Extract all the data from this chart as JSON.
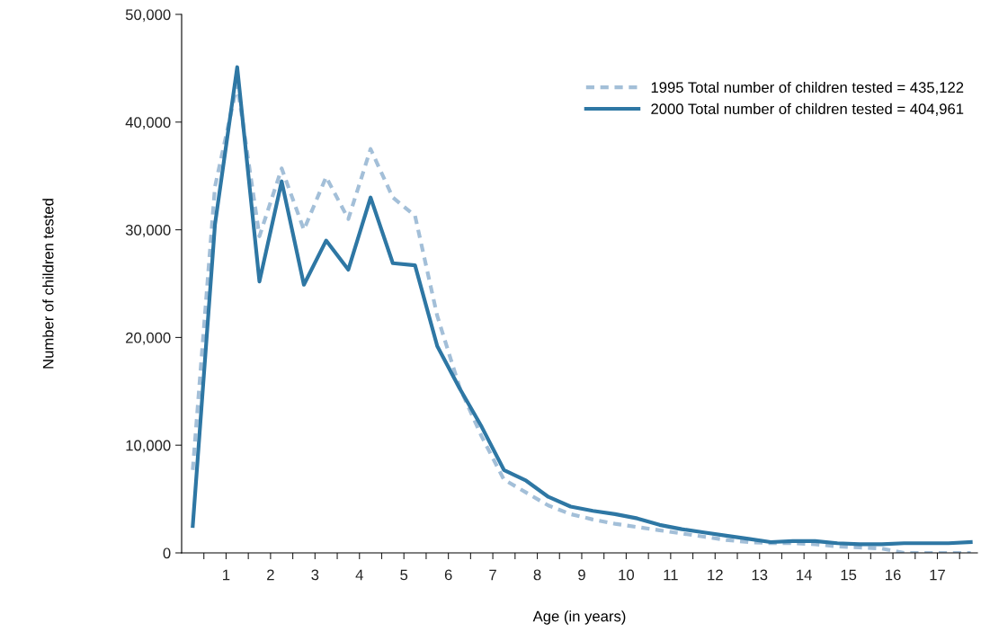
{
  "chart_data": {
    "type": "line",
    "xlabel": "Age (in years)",
    "ylabel": "Number of children tested",
    "x": [
      0.25,
      0.75,
      1.25,
      1.75,
      2.25,
      2.75,
      3.25,
      3.75,
      4.25,
      4.75,
      5.25,
      5.75,
      6.25,
      6.75,
      7.25,
      7.75,
      8.25,
      8.75,
      9.25,
      9.75,
      10.25,
      10.75,
      11.25,
      11.75,
      12.25,
      12.75,
      13.25,
      13.75,
      14.25,
      14.75,
      15.25,
      15.75,
      16.25,
      16.75,
      17.25,
      17.75
    ],
    "series": [
      {
        "name": "1995 Total number of children tested = 435,122",
        "color": "#a3bfd8",
        "line_style": "dashed",
        "values": [
          7700,
          34000,
          43500,
          29400,
          35700,
          30000,
          34900,
          31000,
          37500,
          33000,
          31300,
          22000,
          15400,
          10800,
          6800,
          5600,
          4400,
          3600,
          3100,
          2700,
          2400,
          2100,
          1800,
          1500,
          1200,
          1000,
          900,
          900,
          800,
          600,
          500,
          400,
          0,
          0,
          0,
          0
        ]
      },
      {
        "name": "2000 Total number of children tested = 404,961",
        "color": "#2e77a4",
        "line_style": "solid",
        "values": [
          2500,
          30500,
          45100,
          25200,
          34500,
          24900,
          29000,
          26300,
          33000,
          26900,
          26700,
          19200,
          15300,
          11700,
          7700,
          6700,
          5200,
          4300,
          3900,
          3600,
          3200,
          2600,
          2200,
          1900,
          1600,
          1300,
          1000,
          1100,
          1100,
          900,
          800,
          800,
          900,
          900,
          900,
          1000
        ]
      }
    ],
    "xlim": [
      0,
      17.9
    ],
    "xticks": [
      {
        "value": 0.5,
        "label": null
      },
      {
        "value": 1,
        "label": "1"
      },
      {
        "value": 1.5,
        "label": null
      },
      {
        "value": 2,
        "label": "2"
      },
      {
        "value": 2.5,
        "label": null
      },
      {
        "value": 3,
        "label": "3"
      },
      {
        "value": 3.5,
        "label": null
      },
      {
        "value": 4,
        "label": "4"
      },
      {
        "value": 4.5,
        "label": null
      },
      {
        "value": 5,
        "label": "5"
      },
      {
        "value": 5.5,
        "label": null
      },
      {
        "value": 6,
        "label": "6"
      },
      {
        "value": 6.5,
        "label": null
      },
      {
        "value": 7,
        "label": "7"
      },
      {
        "value": 7.5,
        "label": null
      },
      {
        "value": 8,
        "label": "8"
      },
      {
        "value": 8.5,
        "label": null
      },
      {
        "value": 9,
        "label": "9"
      },
      {
        "value": 9.5,
        "label": null
      },
      {
        "value": 10,
        "label": "10"
      },
      {
        "value": 10.5,
        "label": null
      },
      {
        "value": 11,
        "label": "11"
      },
      {
        "value": 11.5,
        "label": null
      },
      {
        "value": 12,
        "label": "12"
      },
      {
        "value": 12.5,
        "label": null
      },
      {
        "value": 13,
        "label": "13"
      },
      {
        "value": 13.5,
        "label": null
      },
      {
        "value": 14,
        "label": "14"
      },
      {
        "value": 14.5,
        "label": null
      },
      {
        "value": 15,
        "label": "15"
      },
      {
        "value": 15.5,
        "label": null
      },
      {
        "value": 16,
        "label": "16"
      },
      {
        "value": 16.5,
        "label": null
      },
      {
        "value": 17,
        "label": "17"
      },
      {
        "value": 17.5,
        "label": null
      }
    ],
    "ylim": [
      0,
      50000
    ],
    "yticks": [
      {
        "value": 0,
        "label": "0"
      },
      {
        "value": 10000,
        "label": "10,000"
      },
      {
        "value": 20000,
        "label": "20,000"
      },
      {
        "value": 30000,
        "label": "30,000"
      },
      {
        "value": 40000,
        "label": "40,000"
      },
      {
        "value": 50000,
        "label": "50,000"
      }
    ],
    "grid": false,
    "legend": "top right",
    "marker": "none"
  }
}
